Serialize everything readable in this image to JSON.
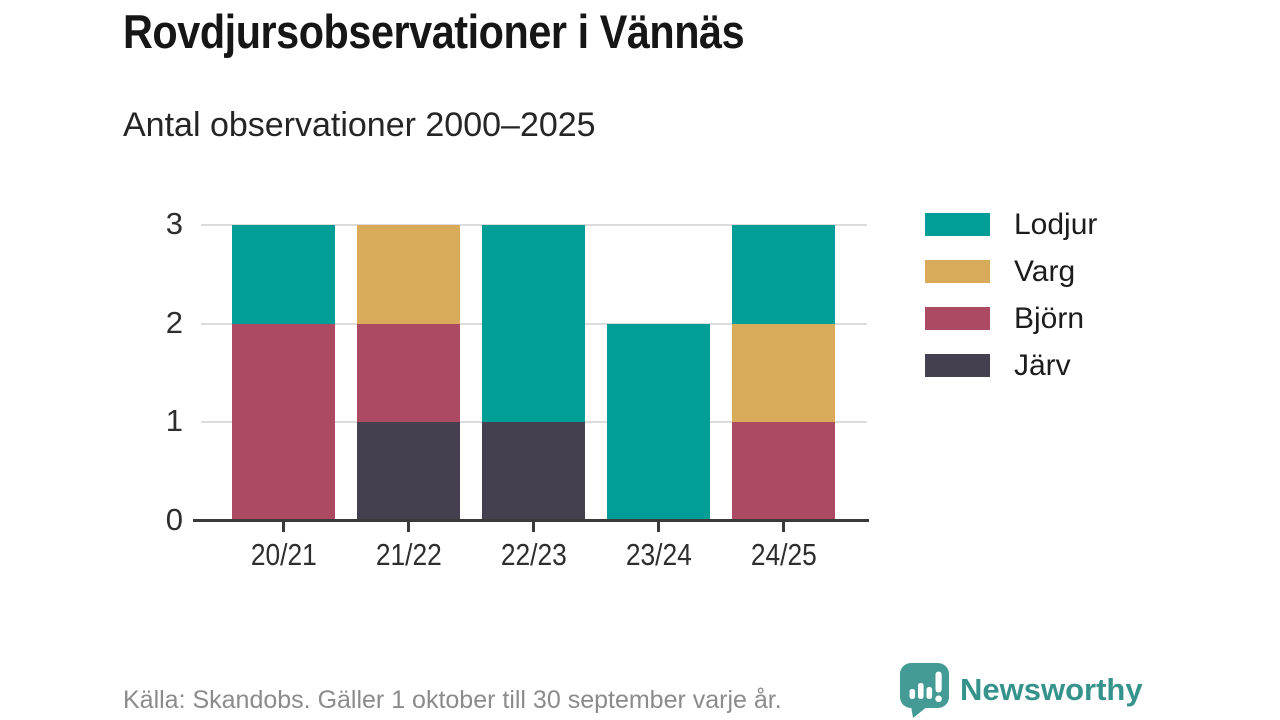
{
  "title": "Rovdjursobservationer i Vännäs",
  "subtitle": "Antal observationer 2000–2025",
  "footer": {
    "source": "Källa: Skandobs. Gäller 1 oktober till 30 september varje år."
  },
  "branding": {
    "name": "Newsworthy",
    "text_color": "#35938c",
    "icon_color": "#449a94"
  },
  "colors": {
    "grid": "#dcdcdc",
    "axis": "#3a3a3a",
    "tick_label": "#2e2e2e"
  },
  "chart_data": {
    "type": "bar",
    "stacked": true,
    "title": "Rovdjursobservationer i Vännäs",
    "subtitle": "Antal observationer 2000–2025",
    "categories": [
      "20/21",
      "21/22",
      "22/23",
      "23/24",
      "24/25"
    ],
    "series": [
      {
        "name": "Lodjur",
        "color": "#009e96",
        "values": [
          1,
          0,
          2,
          2,
          1
        ]
      },
      {
        "name": "Varg",
        "color": "#d8ab5b",
        "values": [
          0,
          1,
          0,
          0,
          1
        ]
      },
      {
        "name": "Björn",
        "color": "#ac4a63",
        "values": [
          2,
          1,
          0,
          0,
          1
        ]
      },
      {
        "name": "Järv",
        "color": "#444050",
        "values": [
          0,
          1,
          1,
          0,
          0
        ]
      }
    ],
    "stack_order_bottom_to_top": [
      "Järv",
      "Björn",
      "Varg",
      "Lodjur"
    ],
    "totals": [
      3,
      3,
      3,
      2,
      3
    ],
    "xlabel": "",
    "ylabel": "",
    "ylim": [
      0,
      3
    ],
    "yticks": [
      0,
      1,
      2,
      3
    ],
    "grid": "horizontal",
    "legend_position": "right"
  }
}
